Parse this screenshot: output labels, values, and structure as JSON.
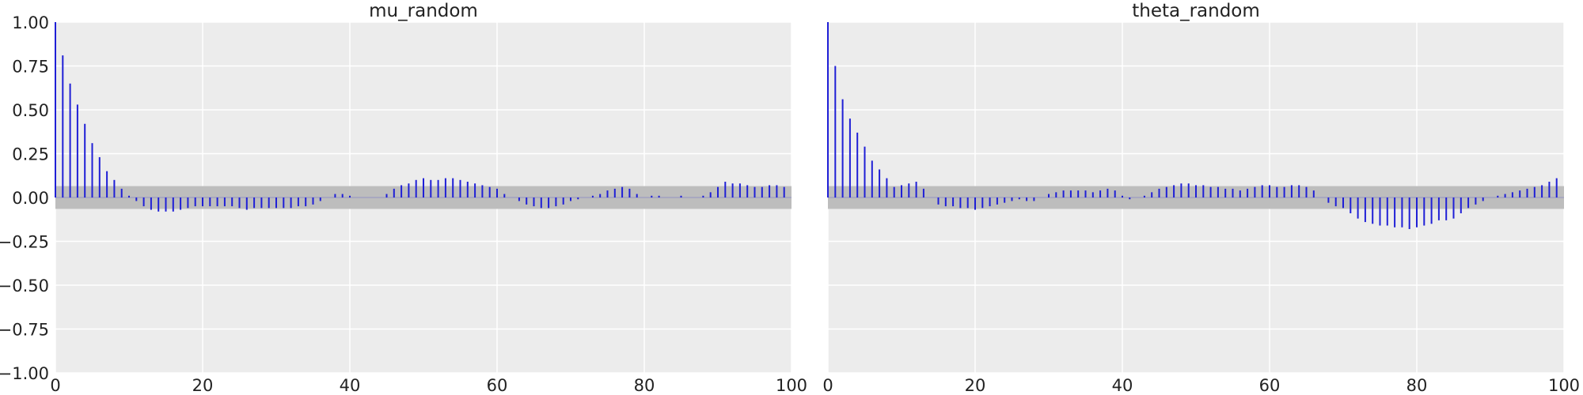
{
  "chart_data": [
    {
      "type": "bar",
      "title": "mu_random",
      "xlabel": "",
      "ylabel": "",
      "xlim": [
        0,
        100
      ],
      "ylim": [
        -1,
        1
      ],
      "xticks": [
        0,
        20,
        40,
        60,
        80,
        100
      ],
      "xtick_labels": [
        "0",
        "20",
        "40",
        "60",
        "80",
        "100"
      ],
      "yticks": [
        1.0,
        0.75,
        0.5,
        0.25,
        0.0,
        -0.25,
        -0.5,
        -0.75,
        -1.0
      ],
      "ytick_labels": [
        "1.00",
        "0.75",
        "0.50",
        "0.25",
        "0.00",
        "−0.25",
        "−0.50",
        "−0.75",
        "−1.00"
      ],
      "grid": true,
      "confidence_band": [
        -0.065,
        0.065
      ],
      "lags": [
        0,
        1,
        2,
        3,
        4,
        5,
        6,
        7,
        8,
        9,
        10,
        11,
        12,
        13,
        14,
        15,
        16,
        17,
        18,
        19,
        20,
        21,
        22,
        23,
        24,
        25,
        26,
        27,
        28,
        29,
        30,
        31,
        32,
        33,
        34,
        35,
        36,
        37,
        38,
        39,
        40,
        41,
        42,
        43,
        44,
        45,
        46,
        47,
        48,
        49,
        50,
        51,
        52,
        53,
        54,
        55,
        56,
        57,
        58,
        59,
        60,
        61,
        62,
        63,
        64,
        65,
        66,
        67,
        68,
        69,
        70,
        71,
        72,
        73,
        74,
        75,
        76,
        77,
        78,
        79,
        80,
        81,
        82,
        83,
        84,
        85,
        86,
        87,
        88,
        89,
        90,
        91,
        92,
        93,
        94,
        95,
        96,
        97,
        98,
        99
      ],
      "values": [
        1.0,
        0.81,
        0.65,
        0.53,
        0.42,
        0.31,
        0.23,
        0.15,
        0.1,
        0.05,
        0.01,
        -0.02,
        -0.05,
        -0.07,
        -0.08,
        -0.08,
        -0.08,
        -0.07,
        -0.06,
        -0.05,
        -0.05,
        -0.05,
        -0.05,
        -0.05,
        -0.05,
        -0.06,
        -0.07,
        -0.06,
        -0.06,
        -0.06,
        -0.06,
        -0.06,
        -0.06,
        -0.05,
        -0.05,
        -0.04,
        -0.02,
        0.0,
        0.02,
        0.02,
        0.01,
        0.0,
        0.0,
        0.0,
        0.0,
        0.02,
        0.05,
        0.07,
        0.08,
        0.1,
        0.11,
        0.1,
        0.1,
        0.11,
        0.11,
        0.1,
        0.09,
        0.08,
        0.07,
        0.06,
        0.05,
        0.02,
        0.0,
        -0.02,
        -0.04,
        -0.05,
        -0.06,
        -0.06,
        -0.05,
        -0.04,
        -0.02,
        -0.01,
        0.0,
        0.01,
        0.02,
        0.04,
        0.05,
        0.06,
        0.05,
        0.02,
        0.0,
        0.01,
        0.01,
        0.0,
        0.0,
        0.01,
        0.0,
        0.0,
        0.01,
        0.03,
        0.06,
        0.09,
        0.08,
        0.08,
        0.07,
        0.06,
        0.06,
        0.07,
        0.07,
        0.06
      ]
    },
    {
      "type": "bar",
      "title": "theta_random",
      "xlabel": "",
      "ylabel": "",
      "xlim": [
        0,
        100
      ],
      "ylim": [
        -1,
        1
      ],
      "xticks": [
        0,
        20,
        40,
        60,
        80,
        100
      ],
      "xtick_labels": [
        "0",
        "20",
        "40",
        "60",
        "80",
        "100"
      ],
      "yticks": [],
      "ytick_labels": [],
      "grid": true,
      "confidence_band": [
        -0.065,
        0.065
      ],
      "lags": [
        0,
        1,
        2,
        3,
        4,
        5,
        6,
        7,
        8,
        9,
        10,
        11,
        12,
        13,
        14,
        15,
        16,
        17,
        18,
        19,
        20,
        21,
        22,
        23,
        24,
        25,
        26,
        27,
        28,
        29,
        30,
        31,
        32,
        33,
        34,
        35,
        36,
        37,
        38,
        39,
        40,
        41,
        42,
        43,
        44,
        45,
        46,
        47,
        48,
        49,
        50,
        51,
        52,
        53,
        54,
        55,
        56,
        57,
        58,
        59,
        60,
        61,
        62,
        63,
        64,
        65,
        66,
        67,
        68,
        69,
        70,
        71,
        72,
        73,
        74,
        75,
        76,
        77,
        78,
        79,
        80,
        81,
        82,
        83,
        84,
        85,
        86,
        87,
        88,
        89,
        90,
        91,
        92,
        93,
        94,
        95,
        96,
        97,
        98,
        99
      ],
      "values": [
        1.0,
        0.75,
        0.56,
        0.45,
        0.37,
        0.29,
        0.21,
        0.16,
        0.11,
        0.06,
        0.07,
        0.08,
        0.09,
        0.05,
        0.0,
        -0.04,
        -0.05,
        -0.05,
        -0.06,
        -0.06,
        -0.07,
        -0.06,
        -0.05,
        -0.04,
        -0.03,
        -0.02,
        -0.01,
        -0.02,
        -0.02,
        0.0,
        0.02,
        0.03,
        0.04,
        0.04,
        0.04,
        0.04,
        0.03,
        0.04,
        0.05,
        0.04,
        0.01,
        -0.01,
        0.0,
        0.01,
        0.03,
        0.05,
        0.06,
        0.07,
        0.08,
        0.08,
        0.07,
        0.07,
        0.06,
        0.06,
        0.05,
        0.05,
        0.04,
        0.05,
        0.06,
        0.07,
        0.07,
        0.06,
        0.06,
        0.07,
        0.07,
        0.06,
        0.04,
        0.0,
        -0.03,
        -0.05,
        -0.06,
        -0.09,
        -0.12,
        -0.14,
        -0.15,
        -0.16,
        -0.16,
        -0.17,
        -0.17,
        -0.18,
        -0.17,
        -0.16,
        -0.15,
        -0.13,
        -0.13,
        -0.12,
        -0.09,
        -0.06,
        -0.04,
        -0.02,
        0.0,
        0.01,
        0.02,
        0.03,
        0.04,
        0.05,
        0.06,
        0.07,
        0.09,
        0.11
      ]
    }
  ],
  "colors": {
    "stem": "#1f1fd6",
    "confidence_band": "#bdbdbd",
    "plot_background": "#ececec",
    "grid": "#ffffff",
    "zero_line": "#1f1fd6"
  }
}
